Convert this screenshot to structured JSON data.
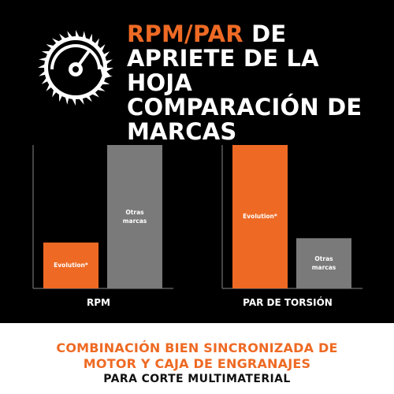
{
  "title": {
    "highlight": "RPM/PAR",
    "rest": " DE APRIETE DE LA HOJA COMPARACIÓN DE MARCAS"
  },
  "badge": {
    "icon": "saw-blade-gauge-icon"
  },
  "colors": {
    "accent": "#ee6a24",
    "competitor": "#7a7a7a",
    "background": "#000000",
    "axis": "#5a5a5a"
  },
  "chart_data": [
    {
      "type": "bar",
      "xlabel": "RPM",
      "categories": [
        "Evolution*",
        "Otras marcas"
      ],
      "category_lines": [
        [
          "Evolution*"
        ],
        [
          "Otras",
          "marcas"
        ]
      ],
      "values": [
        0.32,
        1.0
      ],
      "ylim": [
        0,
        1
      ],
      "grid": false
    },
    {
      "type": "bar",
      "xlabel": "PAR DE TORSIÓN",
      "categories": [
        "Evolution*",
        "Otras marcas"
      ],
      "category_lines": [
        [
          "Evolution*"
        ],
        [
          "Otras",
          "marcas"
        ]
      ],
      "values": [
        1.0,
        0.35
      ],
      "ylim": [
        0,
        1
      ],
      "grid": false
    }
  ],
  "footer": {
    "line1": "COMBINACIÓN BIEN SINCRONIZADA DE",
    "line2": "MOTOR Y CAJA DE ENGRANAJES",
    "line3": "PARA CORTE MULTIMATERIAL"
  }
}
